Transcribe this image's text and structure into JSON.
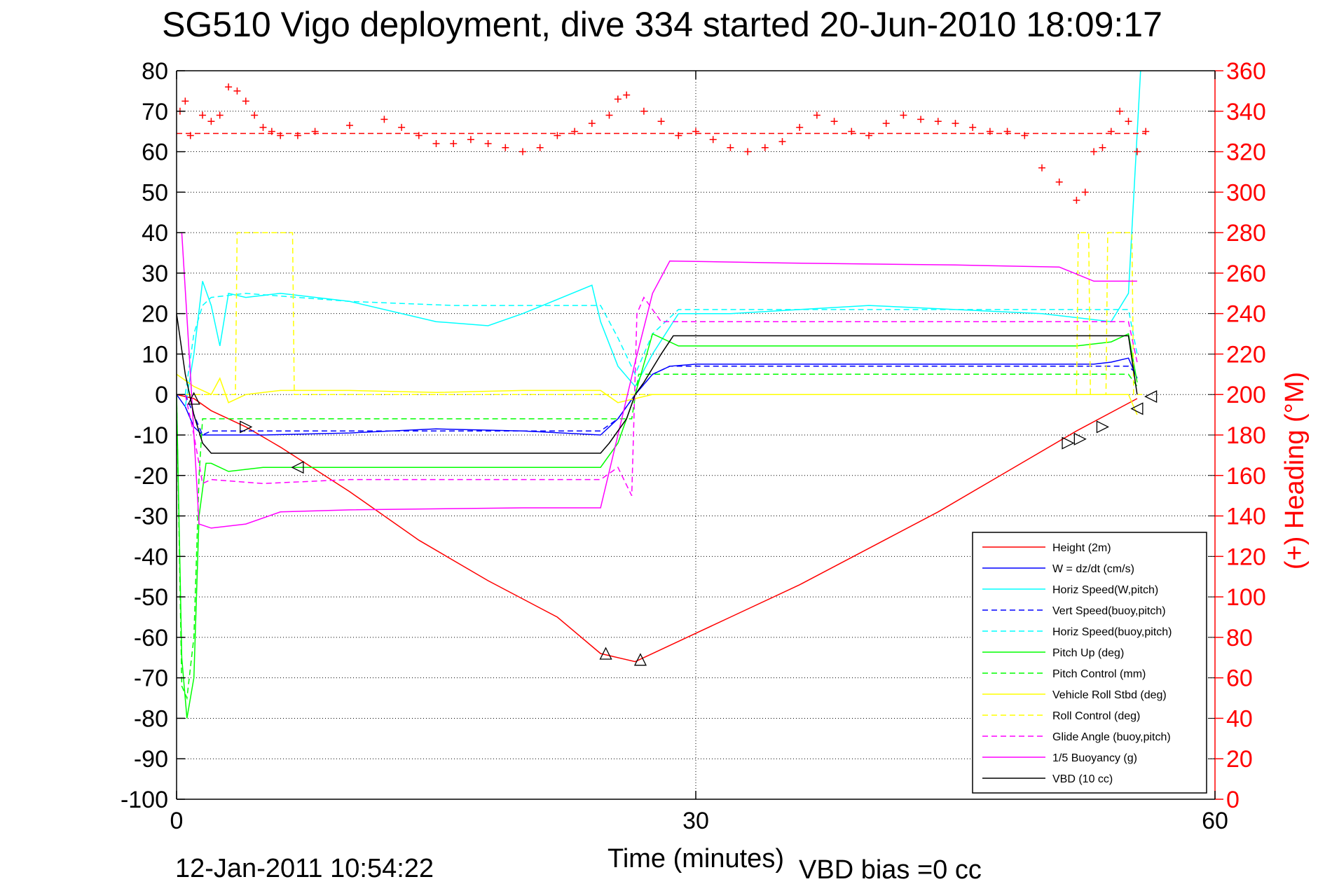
{
  "chart_data": {
    "type": "line",
    "title": "SG510 Vigo deployment, dive 334 started 20-Jun-2010 18:09:17",
    "xlabel": "Time (minutes)",
    "ylabel": "",
    "y2label": "(+) Heading (°M)",
    "xlim": [
      0,
      60
    ],
    "ylim": [
      -100,
      80
    ],
    "y2lim": [
      0,
      360
    ],
    "x_ticks": [
      "0",
      "30",
      "60"
    ],
    "y_ticks": [
      "80",
      "70",
      "60",
      "50",
      "40",
      "30",
      "20",
      "10",
      "0",
      "-10",
      "-20",
      "-30",
      "-40",
      "-50",
      "-60",
      "-70",
      "-80",
      "-90",
      "-100"
    ],
    "y2_ticks": [
      "360",
      "340",
      "320",
      "300",
      "280",
      "260",
      "240",
      "220",
      "200",
      "180",
      "160",
      "140",
      "120",
      "100",
      "80",
      "60",
      "40",
      "20",
      "0"
    ],
    "grid": "dotted at x=30 and every 10 y-units",
    "legend_position": "lower-right",
    "series": [
      {
        "name": "Height (2m)",
        "color": "#ff0000",
        "style": "solid",
        "x": [
          0,
          1,
          2,
          4,
          6,
          10,
          14,
          18,
          22,
          24.5,
          26.5,
          28.5,
          32,
          36,
          40,
          44,
          48,
          52,
          55.5
        ],
        "y": [
          0,
          -1,
          -4,
          -8,
          -13,
          -24,
          -36,
          -46,
          -55,
          -64,
          -66,
          -62,
          -55,
          -47,
          -38,
          -29,
          -19,
          -9,
          -1
        ]
      },
      {
        "name": "W = dz/dt (cm/s)",
        "color": "#0000ff",
        "style": "solid",
        "x": [
          0,
          0.5,
          1,
          1.5,
          2,
          5,
          10,
          15,
          20,
          24.5,
          25.5,
          26.5,
          27.5,
          28.5,
          30,
          35,
          40,
          45,
          50,
          53,
          54,
          55,
          55.5
        ],
        "y": [
          0,
          -3,
          -8,
          -10,
          -10,
          -10,
          -9.5,
          -8.5,
          -9,
          -10,
          -6,
          0,
          5,
          7,
          7.5,
          7.5,
          7.5,
          7.5,
          7.5,
          7.5,
          8,
          9,
          4
        ]
      },
      {
        "name": "Horiz Speed(W,pitch)",
        "color": "#00ffff",
        "style": "solid",
        "x": [
          0.5,
          1,
          1.5,
          2,
          2.5,
          3,
          4,
          6,
          10,
          15,
          18,
          20,
          24,
          24.5,
          25.5,
          26.5,
          27.5,
          29,
          32,
          36,
          40,
          45,
          50,
          54,
          55,
          55.7
        ],
        "y": [
          -3,
          10,
          28,
          22,
          12,
          25,
          24,
          25,
          23,
          18,
          17,
          20,
          27,
          18,
          7,
          2,
          10,
          20,
          20,
          21,
          22,
          21,
          20,
          18,
          25,
          80
        ]
      },
      {
        "name": "Vert Speed(buoy,pitch)",
        "color": "#0000ff",
        "style": "dashed",
        "x": [
          0.5,
          1,
          1.5,
          2,
          10,
          20,
          24.5,
          25.5,
          26.5,
          27.5,
          28.5,
          40,
          52,
          55,
          55.5
        ],
        "y": [
          0,
          -5,
          -10,
          -9,
          -9,
          -9,
          -9,
          -6,
          0,
          5,
          7,
          7,
          7,
          7,
          5
        ]
      },
      {
        "name": "Horiz Speed(buoy,pitch)",
        "color": "#00ffff",
        "style": "dashed",
        "x": [
          0.5,
          1,
          1.5,
          2,
          4,
          10,
          16,
          20,
          24.5,
          25.5,
          26.5,
          27.5,
          29,
          40,
          52,
          55,
          55.5
        ],
        "y": [
          0,
          15,
          22,
          24,
          25,
          23,
          22,
          22,
          22,
          14,
          5,
          15,
          21,
          21,
          21,
          21,
          10
        ]
      },
      {
        "name": "Pitch Up (deg)",
        "color": "#00ff00",
        "style": "solid",
        "x": [
          0,
          0.3,
          0.6,
          1,
          1.3,
          1.7,
          2,
          3,
          5,
          10,
          20,
          24.5,
          25.5,
          26.5,
          27.5,
          29,
          35,
          45,
          52,
          54,
          55,
          55.5
        ],
        "y": [
          0,
          -65,
          -80,
          -70,
          -30,
          -17,
          -17,
          -19,
          -18,
          -18,
          -18,
          -18,
          -12,
          0,
          15,
          12,
          12,
          12,
          12,
          13,
          15,
          3
        ]
      },
      {
        "name": "Pitch Control (mm)",
        "color": "#00ff00",
        "style": "dashed",
        "x": [
          0,
          0.3,
          0.6,
          1,
          1.3,
          1.5,
          2,
          24.5,
          25.5,
          26.3,
          26.7,
          27.5,
          55,
          55.5
        ],
        "y": [
          0,
          -72,
          -75,
          -60,
          -20,
          -6,
          -6,
          -6,
          -6,
          -6,
          5,
          5,
          5,
          2
        ]
      },
      {
        "name": "Vehicle Roll Stbd (deg)",
        "color": "#ffff00",
        "style": "solid",
        "x": [
          0,
          1,
          2,
          2.5,
          3,
          4,
          6,
          10,
          15,
          20,
          24.5,
          25.5,
          26.5,
          27.5,
          30,
          35,
          40,
          45,
          50,
          52,
          53,
          54,
          55,
          55.5
        ],
        "y": [
          5,
          2,
          0,
          4,
          -2,
          0,
          1,
          1,
          0.5,
          1,
          1,
          -2,
          -1,
          0,
          0,
          0,
          0,
          0,
          0,
          0,
          0,
          0,
          0,
          -5
        ]
      },
      {
        "name": "Roll Control (deg)",
        "color": "#ffff00",
        "style": "dashed",
        "x": [
          0,
          1,
          3.4,
          3.5,
          6.7,
          6.8,
          10,
          20,
          24.5,
          25,
          26,
          26.8,
          27,
          52,
          52.1,
          52.7,
          52.8,
          53.7,
          53.8,
          55.2,
          55.3,
          55.8
        ],
        "y": [
          0,
          0,
          0,
          40,
          40,
          0,
          0,
          0,
          0,
          0,
          0,
          0,
          0,
          0,
          40,
          40,
          0,
          0,
          40,
          40,
          0,
          0
        ]
      },
      {
        "name": "Glide Angle (buoy,pitch)",
        "color": "#ff00ff",
        "style": "dashed",
        "x": [
          0,
          0.5,
          1,
          1.5,
          2,
          5,
          10,
          20,
          24.5,
          25.5,
          26.3,
          26.6,
          27,
          28,
          30,
          40,
          52,
          55,
          55.5
        ],
        "y": [
          0,
          0,
          -10,
          -22,
          -21,
          -22,
          -21,
          -21,
          -21,
          -18,
          -25,
          20,
          24,
          18,
          18,
          18,
          18,
          18,
          8
        ]
      },
      {
        "name": "1/5 Buoyancy (g)",
        "color": "#ff00ff",
        "style": "solid",
        "x": [
          0.3,
          0.8,
          1.3,
          2,
          4,
          6,
          10,
          20,
          24.5,
          25.5,
          26.5,
          27.5,
          28.5,
          35,
          45,
          51,
          53,
          55.5
        ],
        "y": [
          40,
          5,
          -32,
          -33,
          -32,
          -29,
          -28.5,
          -28,
          -28,
          -10,
          8,
          25,
          33,
          32.5,
          32,
          31.5,
          28,
          28
        ]
      },
      {
        "name": "VBD (10 cc)",
        "color": "#000000",
        "style": "solid",
        "x": [
          0,
          0.5,
          1,
          1.5,
          2,
          10,
          20,
          24.5,
          25,
          26,
          26.5,
          27,
          28,
          28.7,
          35,
          45,
          55,
          55.5
        ],
        "y": [
          20,
          5,
          -5,
          -12,
          -14.5,
          -14.5,
          -14.5,
          -14.5,
          -12,
          -6,
          0,
          3,
          10,
          14.5,
          14.5,
          14.5,
          14.5,
          0
        ]
      }
    ],
    "heading_series": {
      "axis": "right",
      "color": "#ff0000",
      "marker": "+",
      "mean_line_value": 329,
      "x": [
        0.2,
        0.5,
        0.8,
        1.5,
        2,
        2.5,
        3,
        3.5,
        4,
        4.5,
        5,
        5.5,
        6,
        7,
        8,
        10,
        12,
        13,
        14,
        15,
        16,
        17,
        18,
        19,
        20,
        21,
        22,
        23,
        24,
        25,
        25.5,
        26,
        27,
        28,
        29,
        30,
        31,
        32,
        33,
        34,
        35,
        36,
        37,
        38,
        39,
        40,
        41,
        42,
        43,
        44,
        45,
        46,
        47,
        48,
        49,
        50,
        51,
        52,
        52.5,
        53,
        53.5,
        54,
        54.5,
        55,
        55.5,
        56
      ],
      "y": [
        340,
        345,
        328,
        338,
        335,
        338,
        352,
        350,
        345,
        338,
        332,
        330,
        328,
        328,
        330,
        333,
        336,
        332,
        328,
        324,
        324,
        326,
        324,
        322,
        320,
        322,
        328,
        330,
        334,
        338,
        346,
        348,
        340,
        335,
        328,
        330,
        326,
        322,
        320,
        322,
        325,
        332,
        338,
        335,
        330,
        328,
        334,
        338,
        336,
        335,
        334,
        332,
        330,
        330,
        328,
        312,
        305,
        296,
        300,
        320,
        322,
        330,
        340,
        335,
        320,
        330
      ]
    },
    "markers": {
      "color": "#000000",
      "points": [
        {
          "x": 1,
          "y": -1,
          "shape": "triangle-up"
        },
        {
          "x": 4,
          "y": -8,
          "shape": "triangle-right"
        },
        {
          "x": 7,
          "y": -18,
          "shape": "triangle-left"
        },
        {
          "x": 24.8,
          "y": -64,
          "shape": "triangle-up"
        },
        {
          "x": 26.8,
          "y": -65.5,
          "shape": "triangle-up"
        },
        {
          "x": 51.5,
          "y": -12,
          "shape": "triangle-right"
        },
        {
          "x": 52.2,
          "y": -11,
          "shape": "triangle-right"
        },
        {
          "x": 53.5,
          "y": -8,
          "shape": "triangle-right"
        },
        {
          "x": 55.5,
          "y": -3.5,
          "shape": "triangle-left"
        },
        {
          "x": 56.3,
          "y": -0.5,
          "shape": "triangle-left"
        }
      ]
    },
    "footer_left": "12-Jan-2011 10:54:22",
    "footer_right": "VBD bias =0 cc"
  }
}
